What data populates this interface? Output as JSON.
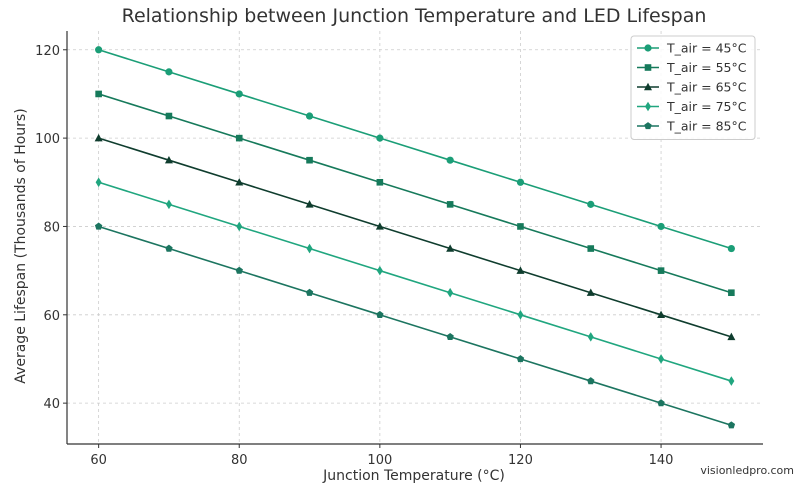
{
  "chart_data": {
    "type": "line",
    "title": "Relationship between Junction Temperature and LED Lifespan",
    "xlabel": "Junction Temperature (°C)",
    "ylabel": "Average Lifespan (Thousands of Hours)",
    "x": [
      60,
      70,
      80,
      90,
      100,
      110,
      120,
      130,
      140,
      150
    ],
    "xticks": [
      60,
      80,
      100,
      120,
      140
    ],
    "yticks": [
      40,
      60,
      80,
      100,
      120
    ],
    "xlim": [
      55.5,
      154.5
    ],
    "ylim": [
      30.75,
      124.25
    ],
    "grid": true,
    "legend_position": "top-right",
    "series": [
      {
        "name": "T_air = 45°C",
        "values": [
          120,
          115,
          110,
          105,
          100,
          95,
          90,
          85,
          80,
          75
        ],
        "color": "#1b9e77",
        "marker": "circle"
      },
      {
        "name": "T_air = 55°C",
        "values": [
          110,
          105,
          100,
          95,
          90,
          85,
          80,
          75,
          70,
          65
        ],
        "color": "#167a5b",
        "marker": "square"
      },
      {
        "name": "T_air = 65°C",
        "values": [
          100,
          95,
          90,
          85,
          80,
          75,
          70,
          65,
          60,
          55
        ],
        "color": "#0f3d2e",
        "marker": "triangle"
      },
      {
        "name": "T_air = 75°C",
        "values": [
          90,
          85,
          80,
          75,
          70,
          65,
          60,
          55,
          50,
          45
        ],
        "color": "#20a67f",
        "marker": "diamond"
      },
      {
        "name": "T_air = 85°C",
        "values": [
          80,
          75,
          70,
          65,
          60,
          55,
          50,
          45,
          40,
          35
        ],
        "color": "#1c7560",
        "marker": "pentagon"
      }
    ]
  },
  "watermark": "visionledpro.com"
}
